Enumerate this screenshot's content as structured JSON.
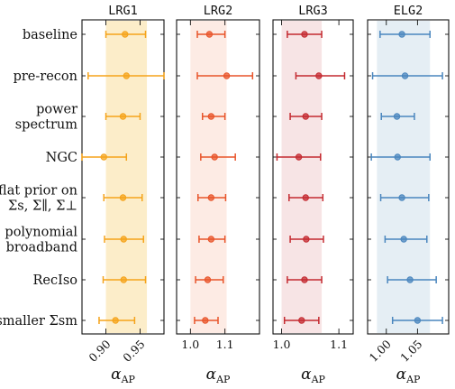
{
  "chart_data": {
    "type": "errorbar",
    "row_labels": [
      [
        "baseline"
      ],
      [
        "pre-recon"
      ],
      [
        "power",
        "spectrum"
      ],
      [
        "NGC"
      ],
      [
        "flat prior on",
        "Σs, Σ∥, Σ⊥"
      ],
      [
        "polynomial",
        "broadband"
      ],
      [
        "RecIso"
      ],
      [
        "smaller Σsm"
      ]
    ],
    "xlabel": "αAP",
    "panels": [
      {
        "name": "LRG1",
        "color": "#f5a31a",
        "band_color": "#fcedc9",
        "xlim": [
          0.865,
          0.985
        ],
        "band": [
          0.9,
          0.96
        ],
        "xticks": [
          0.9,
          0.95
        ],
        "xticklabels": [
          "0.90",
          "0.95"
        ],
        "tick_rotation": 45,
        "points": [
          {
            "value": 0.928,
            "lo": 0.9,
            "hi": 0.958
          },
          {
            "value": 0.93,
            "lo": 0.874,
            "hi": 0.985
          },
          {
            "value": 0.925,
            "lo": 0.9,
            "hi": 0.95
          },
          {
            "value": 0.897,
            "lo": 0.865,
            "hi": 0.93
          },
          {
            "value": 0.925,
            "lo": 0.897,
            "hi": 0.953
          },
          {
            "value": 0.926,
            "lo": 0.898,
            "hi": 0.955
          },
          {
            "value": 0.926,
            "lo": 0.896,
            "hi": 0.958
          },
          {
            "value": 0.914,
            "lo": 0.89,
            "hi": 0.942
          }
        ]
      },
      {
        "name": "LRG2",
        "color": "#e8542a",
        "band_color": "#fdebe4",
        "xlim": [
          0.96,
          1.2
        ],
        "band": [
          1.0,
          1.105
        ],
        "xticks": [
          1.0,
          1.1
        ],
        "xticklabels": [
          "1.0",
          "1.1"
        ],
        "tick_rotation": 0,
        "points": [
          {
            "value": 1.055,
            "lo": 1.02,
            "hi": 1.1
          },
          {
            "value": 1.105,
            "lo": 1.02,
            "hi": 1.18
          },
          {
            "value": 1.06,
            "lo": 1.035,
            "hi": 1.1
          },
          {
            "value": 1.07,
            "lo": 1.03,
            "hi": 1.13
          },
          {
            "value": 1.06,
            "lo": 1.022,
            "hi": 1.102
          },
          {
            "value": 1.06,
            "lo": 1.025,
            "hi": 1.1
          },
          {
            "value": 1.05,
            "lo": 1.015,
            "hi": 1.095
          },
          {
            "value": 1.043,
            "lo": 1.012,
            "hi": 1.08
          }
        ]
      },
      {
        "name": "LRG3",
        "color": "#c42a30",
        "band_color": "#f7e4e5",
        "xlim": [
          0.985,
          1.125
        ],
        "band": [
          1.0,
          1.07
        ],
        "xticks": [
          1.0,
          1.1
        ],
        "xticklabels": [
          "1.0",
          "1.1"
        ],
        "tick_rotation": 0,
        "points": [
          {
            "value": 1.04,
            "lo": 1.01,
            "hi": 1.07
          },
          {
            "value": 1.065,
            "lo": 1.025,
            "hi": 1.11
          },
          {
            "value": 1.042,
            "lo": 1.015,
            "hi": 1.07
          },
          {
            "value": 1.03,
            "lo": 0.992,
            "hi": 1.068
          },
          {
            "value": 1.042,
            "lo": 1.013,
            "hi": 1.072
          },
          {
            "value": 1.043,
            "lo": 1.015,
            "hi": 1.073
          },
          {
            "value": 1.04,
            "lo": 1.01,
            "hi": 1.07
          },
          {
            "value": 1.035,
            "lo": 1.005,
            "hi": 1.065
          }
        ]
      },
      {
        "name": "ELG2",
        "color": "#4a86be",
        "band_color": "#e5eef4",
        "xlim": [
          0.97,
          1.1
        ],
        "band": [
          0.985,
          1.07
        ],
        "xticks": [
          1.0,
          1.05
        ],
        "xticklabels": [
          "1.00",
          "1.05"
        ],
        "tick_rotation": 45,
        "points": [
          {
            "value": 1.025,
            "lo": 0.99,
            "hi": 1.07
          },
          {
            "value": 1.03,
            "lo": 0.978,
            "hi": 1.09
          },
          {
            "value": 1.017,
            "lo": 0.992,
            "hi": 1.045
          },
          {
            "value": 1.018,
            "lo": 0.976,
            "hi": 1.07
          },
          {
            "value": 1.025,
            "lo": 0.991,
            "hi": 1.068
          },
          {
            "value": 1.028,
            "lo": 0.998,
            "hi": 1.065
          },
          {
            "value": 1.038,
            "lo": 1.002,
            "hi": 1.08
          },
          {
            "value": 1.05,
            "lo": 1.01,
            "hi": 1.09
          }
        ]
      }
    ]
  }
}
